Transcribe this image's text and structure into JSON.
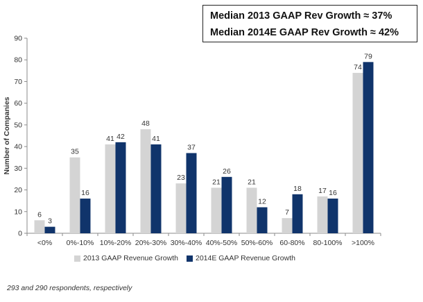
{
  "summary": {
    "line1": "Median 2013 GAAP Rev Growth ≈ 37%",
    "line2": "Median 2014E GAAP Rev Growth ≈ 42%"
  },
  "footnote": "293 and 290 respondents, respectively",
  "colors": {
    "series_2013": "#d4d4d4",
    "series_2014": "#10346b",
    "axis": "#8a8a8a",
    "text": "#333333"
  },
  "chart_data": {
    "type": "bar",
    "title": "",
    "xlabel": "",
    "ylabel": "Number of Companies",
    "ylim": [
      0,
      90
    ],
    "yticks": [
      0,
      10,
      20,
      30,
      40,
      50,
      60,
      70,
      80,
      90
    ],
    "grid": false,
    "legend_position": "bottom",
    "categories": [
      "<0%",
      "0%-10%",
      "10%-20%",
      "20%-30%",
      "30%-40%",
      "40%-50%",
      "50%-60%",
      "60-80%",
      "80-100%",
      ">100%"
    ],
    "series": [
      {
        "name": "2013 GAAP Revenue Growth",
        "values": [
          6,
          35,
          41,
          48,
          23,
          21,
          21,
          7,
          17,
          74
        ]
      },
      {
        "name": "2014E GAAP Revenue Growth",
        "values": [
          3,
          16,
          42,
          41,
          37,
          26,
          12,
          18,
          16,
          79
        ]
      }
    ]
  }
}
